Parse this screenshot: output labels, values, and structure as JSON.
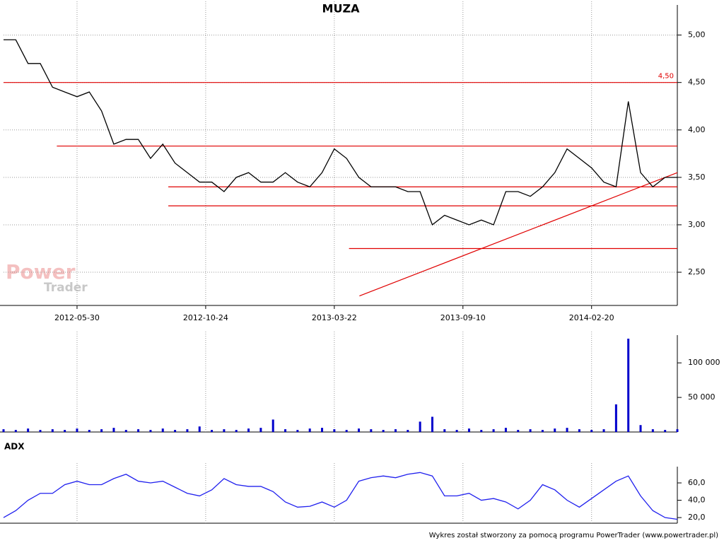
{
  "chart_data": [
    {
      "type": "line",
      "title": "MUZA",
      "x": [
        0,
        2,
        4,
        6,
        8,
        10,
        12,
        14,
        16,
        18,
        20,
        22,
        24,
        26,
        28,
        30,
        32,
        34,
        36,
        38,
        40,
        42,
        44,
        46,
        48,
        50,
        52,
        54,
        56,
        58,
        60,
        62,
        64,
        66,
        68,
        70,
        72,
        74,
        76,
        78,
        80,
        82,
        84,
        86,
        88,
        90,
        92,
        94,
        96,
        98,
        100,
        102,
        104,
        106,
        108,
        110
      ],
      "series": [
        {
          "color": "#000000",
          "values": [
            4.95,
            4.95,
            4.7,
            4.7,
            4.45,
            4.4,
            4.35,
            4.4,
            4.2,
            3.85,
            3.9,
            3.9,
            3.7,
            3.85,
            3.65,
            3.55,
            3.45,
            3.45,
            3.35,
            3.5,
            3.55,
            3.45,
            3.45,
            3.55,
            3.45,
            3.4,
            3.55,
            3.8,
            3.7,
            3.5,
            3.4,
            3.4,
            3.4,
            3.35,
            3.35,
            3.0,
            3.1,
            3.05,
            3.0,
            3.05,
            3.0,
            3.35,
            3.35,
            3.3,
            3.4,
            3.55,
            3.8,
            3.7,
            3.6,
            3.45,
            3.4,
            4.3,
            3.55,
            3.4,
            3.5,
            3.5
          ]
        }
      ],
      "lines": [
        {
          "x": [
            0,
            110
          ],
          "values": [
            4.5,
            4.5
          ],
          "color": "#e00000",
          "label": "4,50"
        },
        {
          "x": [
            8.7,
            110
          ],
          "values": [
            3.83,
            3.83
          ],
          "color": "#e00000"
        },
        {
          "x": [
            26.9,
            110
          ],
          "values": [
            3.4,
            3.4
          ],
          "color": "#e00000"
        },
        {
          "x": [
            26.9,
            110
          ],
          "values": [
            3.2,
            3.2
          ],
          "color": "#e00000"
        },
        {
          "x": [
            56.4,
            110
          ],
          "values": [
            2.75,
            2.75
          ],
          "color": "#e00000"
        },
        {
          "x": [
            58.1,
            110
          ],
          "values": [
            2.25,
            3.55
          ],
          "color": "#e00000"
        }
      ],
      "xlim": [
        0,
        110
      ],
      "xticks": [
        {
          "value": 12,
          "label": "2012-05-30"
        },
        {
          "value": 33,
          "label": "2012-10-24"
        },
        {
          "value": 54,
          "label": "2013-03-22"
        },
        {
          "value": 75,
          "label": "2013-09-10"
        },
        {
          "value": 96,
          "label": "2014-02-20"
        }
      ],
      "ylim": [
        2.15,
        5.28
      ],
      "yticks": [
        {
          "value": 2.5,
          "label": "2,50"
        },
        {
          "value": 3,
          "label": "3,00"
        },
        {
          "value": 3.5,
          "label": "3,50"
        },
        {
          "value": 4,
          "label": "4,00"
        },
        {
          "value": 4.5,
          "label": "4,50"
        },
        {
          "value": 5,
          "label": "5,00"
        }
      ],
      "grid": true
    },
    {
      "type": "bar",
      "color": "#0000cc",
      "x": [
        0,
        2,
        4,
        6,
        8,
        10,
        12,
        14,
        16,
        18,
        20,
        22,
        24,
        26,
        28,
        30,
        32,
        34,
        36,
        38,
        40,
        42,
        44,
        46,
        48,
        50,
        52,
        54,
        56,
        58,
        60,
        62,
        64,
        66,
        68,
        70,
        72,
        74,
        76,
        78,
        80,
        82,
        84,
        86,
        88,
        90,
        92,
        94,
        96,
        98,
        100,
        102,
        104,
        106,
        108,
        110
      ],
      "values": [
        4000,
        3000,
        5000,
        3000,
        4000,
        3000,
        5000,
        3000,
        4000,
        6000,
        3000,
        4000,
        3000,
        5000,
        3000,
        4000,
        8000,
        3000,
        4000,
        3000,
        5000,
        6000,
        18000,
        4000,
        3000,
        5000,
        6000,
        4000,
        3000,
        5000,
        4000,
        3000,
        4000,
        3000,
        15000,
        22000,
        4000,
        3000,
        5000,
        3000,
        4000,
        6000,
        3000,
        4000,
        3000,
        5000,
        6000,
        4000,
        3000,
        4000,
        40000,
        135000,
        10000,
        4000,
        3000,
        4000
      ],
      "xlim": [
        0,
        110
      ],
      "ylim": [
        0,
        135000
      ],
      "yticks": [
        {
          "value": 50000,
          "label": "50 000"
        },
        {
          "value": 100000,
          "label": "100 000"
        }
      ]
    },
    {
      "type": "line",
      "title": "ADX",
      "x": [
        0,
        2,
        4,
        6,
        8,
        10,
        12,
        14,
        16,
        18,
        20,
        22,
        24,
        26,
        28,
        30,
        32,
        34,
        36,
        38,
        40,
        42,
        44,
        46,
        48,
        50,
        52,
        54,
        56,
        58,
        60,
        62,
        64,
        66,
        68,
        70,
        72,
        74,
        76,
        78,
        80,
        82,
        84,
        86,
        88,
        90,
        92,
        94,
        96,
        98,
        100,
        102,
        104,
        106,
        108,
        110
      ],
      "series": [
        {
          "color": "#2020ee",
          "values": [
            20,
            28,
            40,
            48,
            48,
            58,
            62,
            58,
            58,
            65,
            70,
            62,
            60,
            62,
            55,
            48,
            45,
            52,
            65,
            58,
            56,
            56,
            50,
            38,
            32,
            33,
            38,
            32,
            40,
            62,
            66,
            68,
            66,
            70,
            72,
            68,
            45,
            45,
            48,
            40,
            42,
            38,
            30,
            40,
            58,
            52,
            40,
            32,
            42,
            52,
            62,
            68,
            45,
            28,
            20,
            18
          ]
        }
      ],
      "xlim": [
        0,
        110
      ],
      "ylim": [
        13.5,
        74.7
      ],
      "yticks": [
        {
          "value": 20,
          "label": "20,0"
        },
        {
          "value": 40,
          "label": "40,0"
        },
        {
          "value": 60,
          "label": "60,0"
        }
      ]
    }
  ],
  "footer": "Wykres został stworzony za pomocą programu PowerTrader (www.powertrader.pl)",
  "watermark": {
    "line1": "Power",
    "line2": "Trader"
  }
}
